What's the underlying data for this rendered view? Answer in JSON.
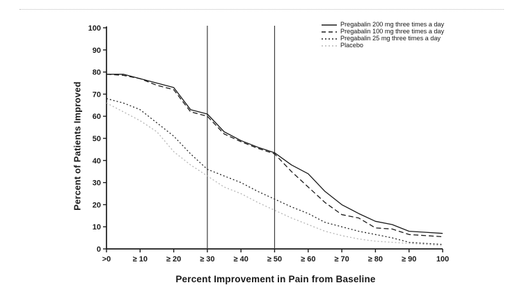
{
  "figure": {
    "background": "#ffffff",
    "top_border_color": "#bcbcbc"
  },
  "chart_data": {
    "type": "line",
    "title": "",
    "xlabel": "Percent Improvement in Pain from Baseline",
    "ylabel": "Percent of Patients Improved",
    "xlim": [
      0,
      100
    ],
    "ylim": [
      0,
      100
    ],
    "grid": false,
    "legend_position": "top-right",
    "axis_color": "#1a1a1a",
    "reference_line_color": "#3c3c3c",
    "reference_lines_x": [
      30,
      50
    ],
    "x_ticks": [
      {
        "value": 0,
        "label": ">0"
      },
      {
        "value": 10,
        "label": "≥ 10"
      },
      {
        "value": 20,
        "label": "≥ 20"
      },
      {
        "value": 30,
        "label": "≥ 30"
      },
      {
        "value": 40,
        "label": "≥ 40"
      },
      {
        "value": 50,
        "label": "≥ 50"
      },
      {
        "value": 60,
        "label": "≥ 60"
      },
      {
        "value": 70,
        "label": "≥ 70"
      },
      {
        "value": 80,
        "label": "≥ 80"
      },
      {
        "value": 90,
        "label": "≥ 90"
      },
      {
        "value": 100,
        "label": "100"
      }
    ],
    "y_ticks": [
      {
        "value": 0,
        "label": "0"
      },
      {
        "value": 10,
        "label": "10"
      },
      {
        "value": 20,
        "label": "20"
      },
      {
        "value": 30,
        "label": "30"
      },
      {
        "value": 40,
        "label": "40"
      },
      {
        "value": 50,
        "label": "50"
      },
      {
        "value": 60,
        "label": "60"
      },
      {
        "value": 70,
        "label": "70"
      },
      {
        "value": 80,
        "label": "80"
      },
      {
        "value": 90,
        "label": "90"
      },
      {
        "value": 100,
        "label": "100"
      }
    ],
    "x": [
      0,
      5,
      10,
      15,
      20,
      25,
      30,
      35,
      40,
      45,
      50,
      55,
      60,
      65,
      70,
      75,
      80,
      85,
      90,
      95,
      100
    ],
    "series": [
      {
        "name": "Pregabalin 200 mg three times a day",
        "style": "solid",
        "color": "#1a1a1a",
        "values": [
          79,
          79,
          77,
          75,
          73,
          63,
          61,
          53,
          49,
          46,
          43.5,
          38,
          34,
          26,
          20,
          16,
          12.5,
          11,
          8,
          7.5,
          7
        ]
      },
      {
        "name": "Pregabalin 100 mg three times a day",
        "style": "dashed",
        "color": "#1a1a1a",
        "values": [
          79,
          78.5,
          77,
          74,
          72,
          62,
          60,
          52,
          48.5,
          45.5,
          43,
          35,
          28,
          21,
          15.5,
          14,
          9.5,
          9,
          6.5,
          6,
          5.5
        ]
      },
      {
        "name": "Pregabalin 25 mg three times a day",
        "style": "dotted",
        "color": "#222222",
        "values": [
          68,
          66,
          63,
          57,
          51,
          43,
          36,
          33,
          30,
          26,
          22.5,
          19,
          16,
          12,
          10,
          8,
          6.5,
          5,
          3,
          2.5,
          2
        ]
      },
      {
        "name": "Placebo",
        "style": "dotted",
        "color": "#b5b5b5",
        "values": [
          66,
          62,
          58,
          53,
          44,
          38,
          33,
          28,
          25,
          21,
          17.5,
          14,
          11,
          8,
          6,
          4.5,
          3.5,
          3,
          2.5,
          2,
          1.5
        ]
      }
    ]
  }
}
